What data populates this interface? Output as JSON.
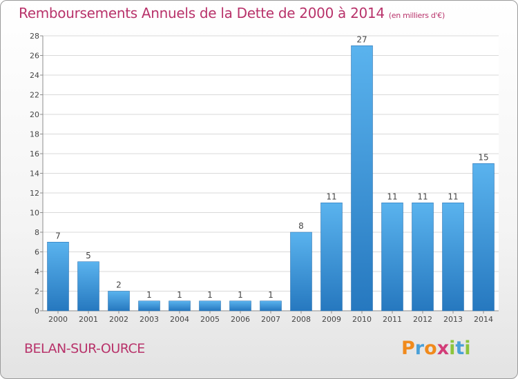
{
  "title": "Remboursements Annuels de la Dette de 2000 à 2014",
  "unit_label": "(en milliers d'€)",
  "city": "BELAN-SUR-OURCE",
  "brand": {
    "text": "Proxiti",
    "letter_colors": [
      "#f08a1c",
      "#4aa0d8",
      "#f08a1c",
      "#d23c78",
      "#8cc43c",
      "#4aa0d8",
      "#8cc43c"
    ]
  },
  "colors": {
    "title": "#b8326a",
    "bar_top": "#5ab3ee",
    "bar_bottom": "#2678bf",
    "bar_edge": "#1e66a8",
    "grid": "#d9d9d9",
    "axis": "#8c8c8c",
    "label": "#444444"
  },
  "chart_data": {
    "type": "bar",
    "categories": [
      "2000",
      "2001",
      "2002",
      "2003",
      "2004",
      "2005",
      "2006",
      "2007",
      "2008",
      "2009",
      "2010",
      "2011",
      "2012",
      "2013",
      "2014"
    ],
    "values": [
      7,
      5,
      2,
      1,
      1,
      1,
      1,
      1,
      8,
      11,
      27,
      11,
      11,
      11,
      15
    ],
    "ylim": [
      0,
      28
    ],
    "yticks": [
      0,
      2,
      4,
      6,
      8,
      10,
      12,
      14,
      16,
      18,
      20,
      22,
      24,
      26,
      28
    ],
    "grid": true,
    "data_labels": true
  }
}
